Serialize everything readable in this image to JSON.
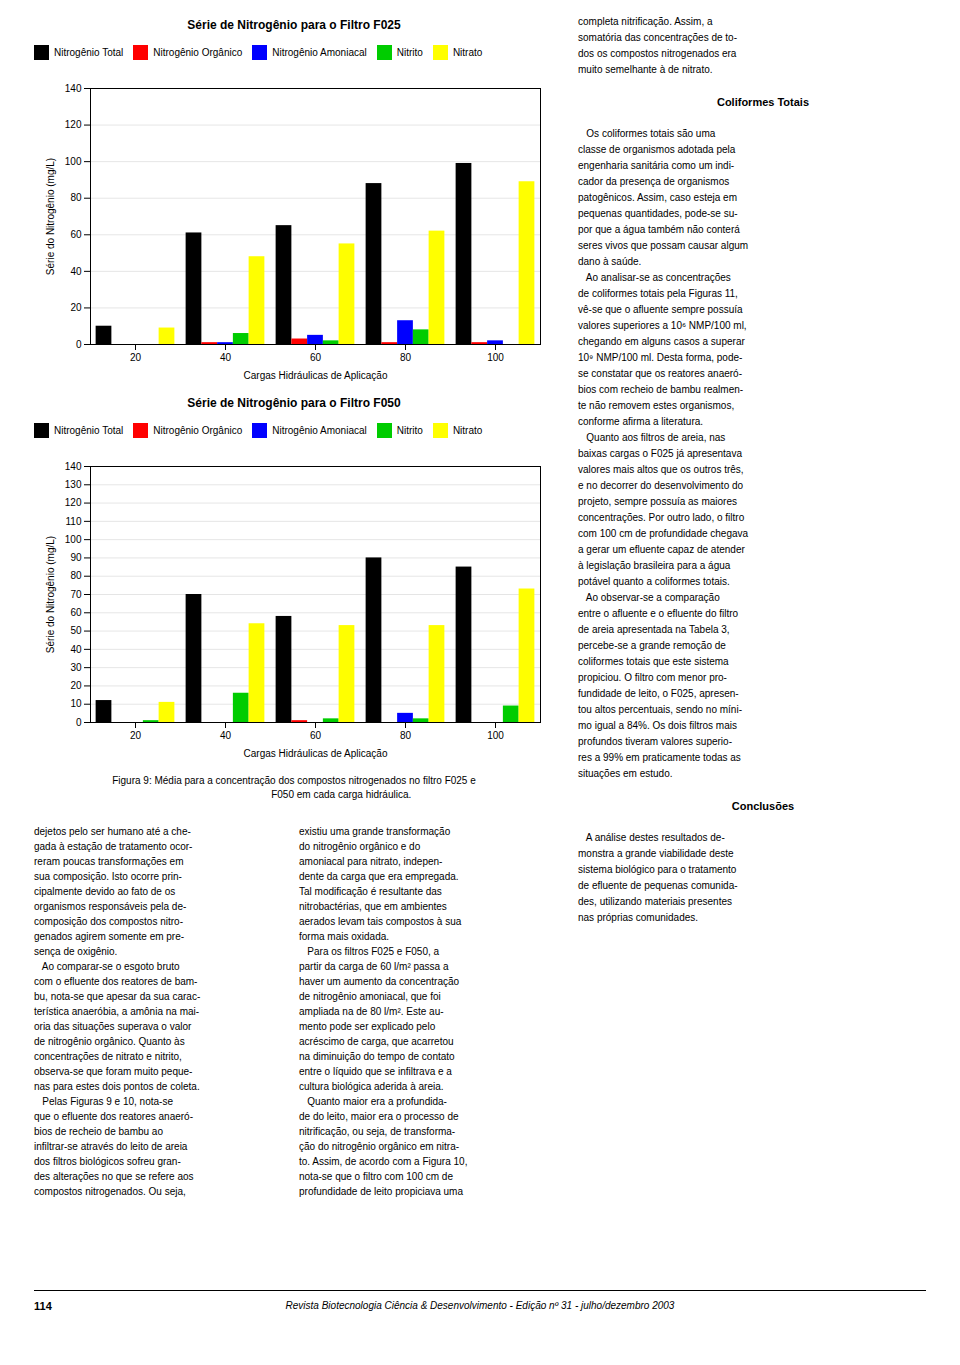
{
  "chart_data": [
    {
      "type": "bar",
      "title": "Série de Nitrogênio para o Filtro F025",
      "xlabel": "Cargas Hidráulicas de Aplicação",
      "ylabel": "Série do Nitrogênio (mg/L)",
      "x": [
        20,
        40,
        60,
        80,
        100
      ],
      "xlim": [
        10,
        110
      ],
      "xticks": [
        20,
        40,
        60,
        80,
        100
      ],
      "ylim": [
        0,
        140
      ],
      "yticks": [
        0,
        20,
        40,
        60,
        80,
        100,
        120,
        140
      ],
      "series": [
        {
          "name": "Nitrogênio Total",
          "color": "#000000",
          "values": [
            10,
            61,
            65,
            88,
            99
          ]
        },
        {
          "name": "Nitrogênio Orgânico",
          "color": "#ff0000",
          "values": [
            0,
            1,
            3,
            1,
            1
          ]
        },
        {
          "name": "Nitrogênio Amoniacal",
          "color": "#0000ff",
          "values": [
            0,
            1,
            5,
            13,
            2
          ]
        },
        {
          "name": "Nitrito",
          "color": "#00cc00",
          "values": [
            0,
            6,
            2,
            8,
            0
          ]
        },
        {
          "name": "Nitrato",
          "color": "#ffff00",
          "values": [
            9,
            48,
            55,
            62,
            89
          ]
        }
      ],
      "grid": true,
      "legend": "upper left"
    },
    {
      "type": "bar",
      "title": "Série de Nitrogênio para o Filtro F050",
      "xlabel": "Cargas Hidráulicas de Aplicação",
      "ylabel": "Série do Nitrogênio (mg/L)",
      "x": [
        20,
        40,
        60,
        80,
        100
      ],
      "xlim": [
        10,
        110
      ],
      "xticks": [
        20,
        40,
        60,
        80,
        100
      ],
      "ylim": [
        0,
        140
      ],
      "yticks": [
        0,
        10,
        20,
        30,
        40,
        50,
        60,
        70,
        80,
        90,
        100,
        110,
        120,
        130,
        140
      ],
      "series": [
        {
          "name": "Nitrogênio Total",
          "color": "#000000",
          "values": [
            12,
            70,
            58,
            90,
            85
          ]
        },
        {
          "name": "Nitrogênio Orgânico",
          "color": "#ff0000",
          "values": [
            0,
            0,
            1,
            0,
            0
          ]
        },
        {
          "name": "Nitrogênio Amoniacal",
          "color": "#0000ff",
          "values": [
            0,
            0,
            0,
            5,
            0
          ]
        },
        {
          "name": "Nitrito",
          "color": "#00cc00",
          "values": [
            1,
            16,
            2,
            2,
            9
          ]
        },
        {
          "name": "Nitrato",
          "color": "#ffff00",
          "values": [
            11,
            54,
            53,
            53,
            73
          ]
        }
      ],
      "grid": true,
      "legend": "upper left"
    }
  ],
  "caption": "Figura 9: Média para a concentração dos compostos nitrogenados no filtro F025 e\n                                  F050 em cada carga hidráulica.",
  "right_text_top": [
    "completa nitrificação. Assim, a",
    "somatória das concentrações de to-",
    "dos os compostos nitrogenados era",
    "muito semelhante à de nitrato."
  ],
  "right_header1": "Coliformes Totais",
  "right_para1": [
    "   Os coliformes totais são uma",
    "classe de organismos adotada pela",
    "engenharia sanitária como um indi-",
    "cador da presença de organismos",
    "patogênicos. Assim, caso esteja em",
    "pequenas quantidades, pode-se su-",
    "por que a água também não conterá",
    "seres vivos que possam causar algum",
    "dano à saúde.",
    "   Ao analisar-se as concentrações",
    "de coliformes totais pela Figuras 11,",
    "vê-se que o afluente sempre possuía",
    "valores superiores a 10⁶ NMP/100 ml,",
    "chegando em alguns casos a superar",
    "10⁹ NMP/100 ml. Desta forma, pode-",
    "se constatar que os reatores anaeró-",
    "bios com recheio de bambu realmen-",
    "te não removem estes organismos,",
    "conforme afirma a literatura.",
    "   Quanto aos filtros de areia, nas",
    "baixas cargas o F025 já apresentava",
    "valores mais altos que os outros três,",
    "e no decorrer do desenvolvimento do",
    "projeto, sempre possuía as maiores",
    "concentrações. Por outro lado, o filtro",
    "com 100 cm de profundidade chegava",
    "a gerar um efluente capaz de atender",
    "à legislação brasileira para a água",
    "potável quanto a coliformes totais.",
    "   Ao observar-se a comparação",
    "entre o afluente e o efluente do filtro",
    "de areia apresentada na Tabela 3,",
    "percebe-se a grande remoção de",
    "coliformes totais que este sistema",
    "propiciou. O filtro com menor pro-",
    "fundidade de leito, o F025, apresen-",
    "tou altos percentuais, sendo no míni-",
    "mo igual a 84%. Os dois filtros mais",
    "profundos tiveram valores superio-",
    "res a 99% em praticamente todas as",
    "situações em estudo."
  ],
  "right_header2": "Conclusões",
  "right_para2": [
    "   A análise destes resultados de-",
    "monstra a grande viabilidade deste",
    "sistema biológico para o tratamento",
    "de efluente de pequenas comunida-",
    "des, utilizando materiais presentes",
    "nas próprias comunidades."
  ],
  "bottom_left_col": [
    "dejetos pelo ser humano até a che-",
    "gada à estação de tratamento ocor-",
    "reram poucas transformações em",
    "sua composição. Isto ocorre prin-",
    "cipalmente devido ao fato de os",
    "organismos responsáveis pela de-",
    "composição dos compostos nitro-",
    "genados agirem somente em pre-",
    "sença de oxigênio.",
    "   Ao comparar-se o esgoto bruto",
    "com o efluente dos reatores de bam-",
    "bu, nota-se que apesar da sua carac-",
    "terística anaeróbia, a amônia na mai-",
    "oria das situações superava o valor",
    "de nitrogênio orgânico. Quanto às",
    "concentrações de nitrato e nitrito,",
    "observa-se que foram muito peque-",
    "nas para estes dois pontos de coleta.",
    "   Pelas Figuras 9 e 10, nota-se",
    "que o efluente dos reatores anaeró-",
    "bios de recheio de bambu ao",
    "infiltrar-se através do leito de areia",
    "dos filtros biológicos sofreu gran-",
    "des alterações no que se refere aos",
    "compostos nitrogenados. Ou seja,"
  ],
  "bottom_mid_col": [
    "existiu uma grande transformação",
    "do nitrogênio orgânico e do",
    "amoniacal para nitrato, indepen-",
    "dente da carga que era empregada.",
    "Tal modificação é resultante das",
    "nitrobactérias, que em ambientes",
    "aerados levam tais compostos à sua",
    "forma mais oxidada.",
    "   Para os filtros F025 e F050, a",
    "partir da carga de 60 l/m² passa a",
    "haver um aumento da concentração",
    "de nitrogênio amoniacal, que foi",
    "ampliada na de 80 l/m². Este au-",
    "mento pode ser explicado pelo",
    "acréscimo de carga, que acarretou",
    "na diminuição do tempo de contato",
    "entre o líquido que se infiltrava e a",
    "cultura biológica aderida à areia.",
    "   Quanto maior era a profundida-",
    "de do leito, maior era o processo de",
    "nitrificação, ou seja, de transforma-",
    "ção do nitrogênio orgânico em nitra-",
    "to. Assim, de acordo com a Figura 10,",
    "nota-se que o filtro com 100 cm de",
    "profundidade de leito propiciava uma"
  ],
  "footer_page": "114",
  "footer_text": "Revista Biotecnologia Ciência & Desenvolvimento - Edição nº 31 - julho/dezembro 2003"
}
